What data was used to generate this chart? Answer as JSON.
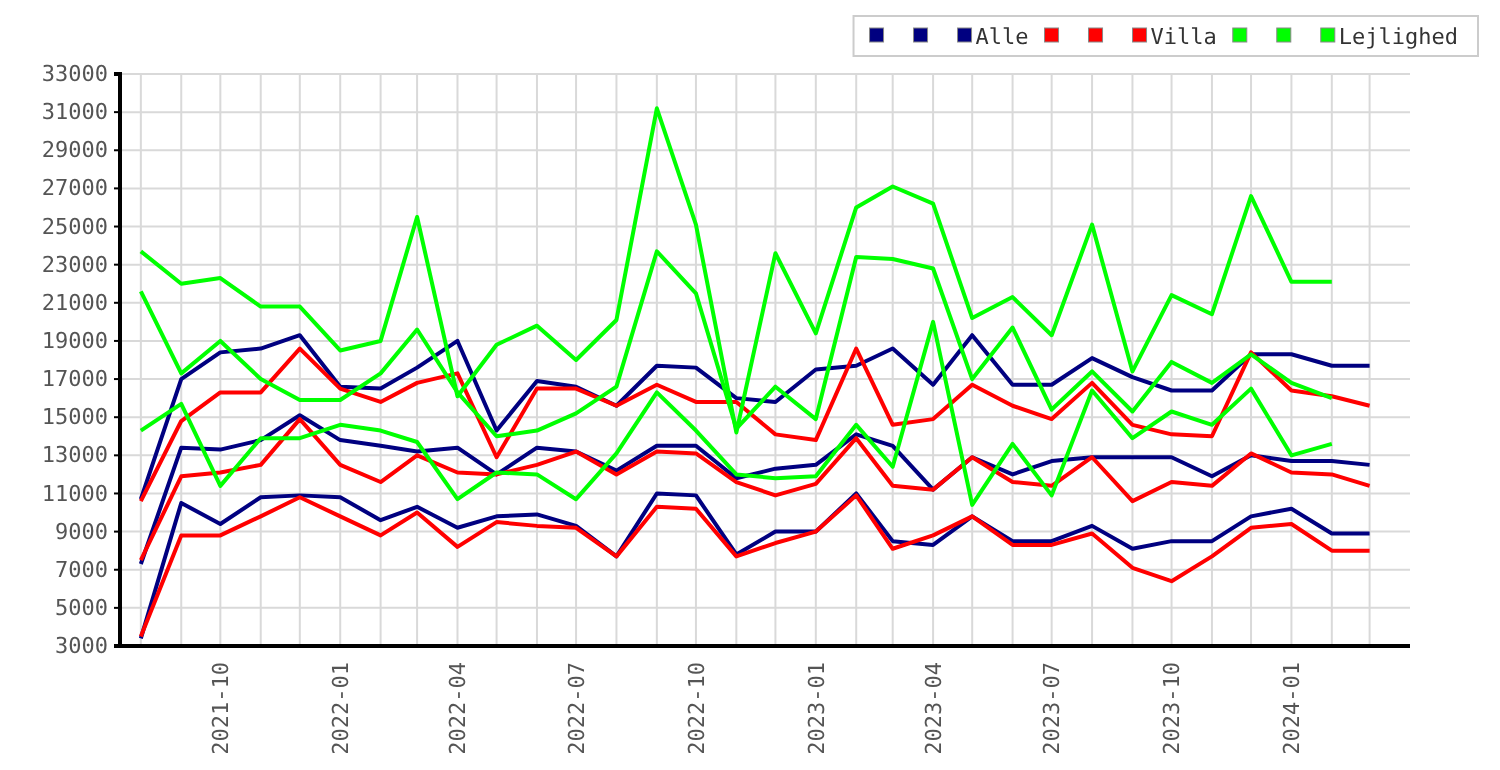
{
  "chart_data": {
    "type": "line",
    "x": [
      "2021-08",
      "2021-09",
      "2021-10",
      "2021-11",
      "2021-12",
      "2022-01",
      "2022-02",
      "2022-03",
      "2022-04",
      "2022-05",
      "2022-06",
      "2022-07",
      "2022-08",
      "2022-09",
      "2022-10",
      "2022-11",
      "2022-12",
      "2023-01",
      "2023-02",
      "2023-03",
      "2023-04",
      "2023-05",
      "2023-06",
      "2023-07",
      "2023-08",
      "2023-09",
      "2023-10",
      "2023-11",
      "2023-12",
      "2024-01",
      "2024-02",
      "2024-03"
    ],
    "series": [
      {
        "color": "#000080",
        "values": [
          3400,
          10500,
          9400,
          10800,
          10900,
          10800,
          9600,
          10300,
          9200,
          9800,
          9900,
          9300,
          7700,
          11000,
          10900,
          7800,
          9000,
          9000,
          11000,
          8500,
          8300,
          9800,
          8500,
          8500,
          9300,
          8100,
          8500,
          8500,
          9800,
          10200,
          8900,
          8900
        ]
      },
      {
        "color": "#000080",
        "values": [
          7300,
          13400,
          13300,
          13800,
          15100,
          13800,
          13500,
          13200,
          13400,
          12000,
          13400,
          13200,
          12200,
          13500,
          13500,
          11800,
          12300,
          12500,
          14100,
          13500,
          11200,
          12900,
          12000,
          12700,
          12900,
          12900,
          12900,
          11900,
          13000,
          12700,
          12700,
          12500
        ]
      },
      {
        "name": "Alle",
        "color": "#000080",
        "values": [
          10700,
          17000,
          18400,
          18600,
          19300,
          16600,
          16500,
          17600,
          19000,
          14300,
          16900,
          16600,
          15600,
          17700,
          17600,
          16000,
          15800,
          17500,
          17700,
          18600,
          16700,
          19300,
          16700,
          16700,
          18100,
          17100,
          16400,
          16400,
          18300,
          18300,
          17700,
          17700
        ]
      },
      {
        "color": "#ff0000",
        "values": [
          3500,
          8800,
          8800,
          9800,
          10800,
          9800,
          8800,
          10000,
          8200,
          9500,
          9300,
          9200,
          7700,
          10300,
          10200,
          7700,
          8400,
          9000,
          10900,
          8100,
          8800,
          9800,
          8300,
          8300,
          8900,
          7100,
          6400,
          7700,
          9200,
          9400,
          8000,
          8000
        ]
      },
      {
        "color": "#ff0000",
        "values": [
          7500,
          11900,
          12100,
          12500,
          14900,
          12500,
          11600,
          13000,
          12100,
          12000,
          12500,
          13200,
          12000,
          13200,
          13100,
          11600,
          10900,
          11500,
          13900,
          11400,
          11200,
          12900,
          11600,
          11400,
          12900,
          10600,
          11600,
          11400,
          13100,
          12100,
          12000,
          11400
        ]
      },
      {
        "name": "Villa",
        "color": "#ff0000",
        "values": [
          10600,
          14800,
          16300,
          16300,
          18600,
          16500,
          15800,
          16800,
          17300,
          12900,
          16500,
          16500,
          15600,
          16700,
          15800,
          15800,
          14100,
          13800,
          18600,
          14600,
          14900,
          16700,
          15600,
          14900,
          16800,
          14600,
          14100,
          14000,
          18400,
          16400,
          16100,
          15600
        ]
      },
      {
        "color": "#00ff00",
        "values": [
          14300,
          15700,
          11400,
          13900,
          13900,
          14600,
          14300,
          13700,
          10700,
          12100,
          12000,
          10700,
          13100,
          16300,
          14300,
          12000,
          11800,
          11900,
          14600,
          12400,
          20000,
          10400,
          13600,
          10900,
          16400,
          13900,
          15300,
          14600,
          16500,
          13000,
          13600,
          null
        ]
      },
      {
        "color": "#00ff00",
        "values": [
          21600,
          17300,
          19000,
          17000,
          15900,
          15900,
          17300,
          19600,
          16300,
          14000,
          14300,
          15200,
          16600,
          23700,
          21500,
          14400,
          16600,
          14900,
          23400,
          23300,
          22800,
          17000,
          19700,
          15400,
          17400,
          15300,
          17900,
          16800,
          18300,
          16800,
          16000,
          null
        ]
      },
      {
        "name": "Lejlighed",
        "color": "#00ff00",
        "values": [
          23700,
          22000,
          22300,
          20800,
          20800,
          18500,
          19000,
          25500,
          16100,
          18800,
          19800,
          18000,
          20100,
          31200,
          25100,
          14200,
          23600,
          19400,
          26000,
          27100,
          26200,
          20200,
          21300,
          19300,
          25100,
          17400,
          21400,
          20400,
          26600,
          22100,
          22100,
          null
        ]
      }
    ],
    "xlim": [
      "2021-07-16",
      "2024-04"
    ],
    "xticks": [
      {
        "value": "2021-08",
        "label": null
      },
      {
        "value": "2021-09",
        "label": null
      },
      {
        "value": "2021-10",
        "label": "2021-10"
      },
      {
        "value": "2021-11",
        "label": null
      },
      {
        "value": "2021-12",
        "label": null
      },
      {
        "value": "2022-01",
        "label": "2022-01"
      },
      {
        "value": "2022-02",
        "label": null
      },
      {
        "value": "2022-03",
        "label": null
      },
      {
        "value": "2022-04",
        "label": "2022-04"
      },
      {
        "value": "2022-05",
        "label": null
      },
      {
        "value": "2022-06",
        "label": null
      },
      {
        "value": "2022-07",
        "label": "2022-07"
      },
      {
        "value": "2022-08",
        "label": null
      },
      {
        "value": "2022-09",
        "label": null
      },
      {
        "value": "2022-10",
        "label": "2022-10"
      },
      {
        "value": "2022-11",
        "label": null
      },
      {
        "value": "2022-12",
        "label": null
      },
      {
        "value": "2023-01",
        "label": "2023-01"
      },
      {
        "value": "2023-02",
        "label": null
      },
      {
        "value": "2023-03",
        "label": null
      },
      {
        "value": "2023-04",
        "label": "2023-04"
      },
      {
        "value": "2023-05",
        "label": null
      },
      {
        "value": "2023-06",
        "label": null
      },
      {
        "value": "2023-07",
        "label": "2023-07"
      },
      {
        "value": "2023-08",
        "label": null
      },
      {
        "value": "2023-09",
        "label": null
      },
      {
        "value": "2023-10",
        "label": "2023-10"
      },
      {
        "value": "2023-11",
        "label": null
      },
      {
        "value": "2023-12",
        "label": null
      },
      {
        "value": "2024-01",
        "label": "2024-01"
      },
      {
        "value": "2024-02",
        "label": null
      },
      {
        "value": "2024-03",
        "label": null
      }
    ],
    "ylim": [
      3000,
      33000
    ],
    "yticks": [
      3000,
      5000,
      7000,
      9000,
      11000,
      13000,
      15000,
      17000,
      19000,
      21000,
      23000,
      25000,
      27000,
      29000,
      31000,
      33000
    ],
    "grid": true,
    "legend": "top right",
    "marker": "none",
    "line_style": "solid"
  }
}
